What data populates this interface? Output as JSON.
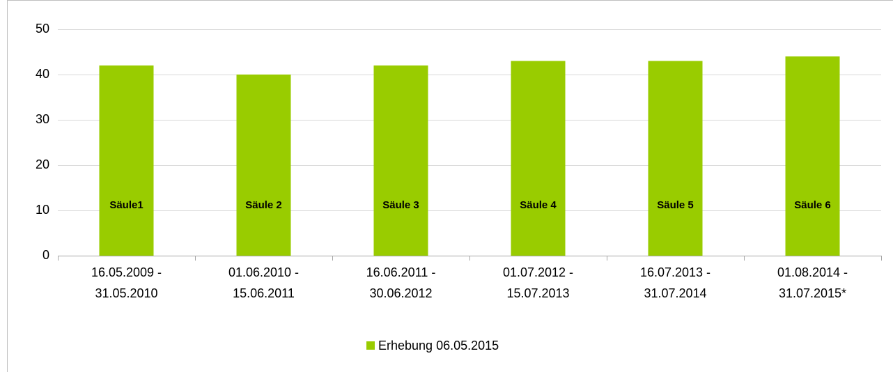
{
  "chart_data": {
    "type": "bar",
    "categories": [
      "16.05.2009 -\n31.05.2010",
      "01.06.2010 -\n15.06.2011",
      "16.06.2011 -\n30.06.2012",
      "01.07.2012 -\n15.07.2013",
      "16.07.2013 -\n31.07.2014",
      "01.08.2014 -\n31.07.2015*"
    ],
    "series": [
      {
        "name": "Erhebung 06.05.2015",
        "color": "#99cc00",
        "values": [
          42,
          40,
          42,
          43,
          43,
          44
        ]
      }
    ],
    "bar_labels": [
      "Säule1",
      "Säule 2",
      "Säule 3",
      "Säule 4",
      "Säule 5",
      "Säule 6"
    ],
    "ylim": [
      0,
      50
    ],
    "yticks": [
      0,
      10,
      20,
      30,
      40,
      50
    ],
    "grid": true,
    "legend": "bottom"
  }
}
